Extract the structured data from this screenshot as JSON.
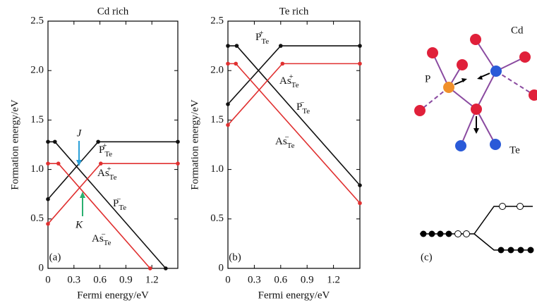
{
  "chart_data": [
    {
      "type": "line",
      "title": "Cd rich",
      "xlabel": "Fermi energy/eV",
      "ylabel": "Formation energy/eV",
      "xlim": [
        0,
        1.5
      ],
      "ylim": [
        0,
        2.5
      ],
      "xticks": [
        0,
        0.3,
        0.6,
        0.9,
        1.2
      ],
      "yticks": [
        0,
        0.5,
        {
          "value": 1,
          "label": "1.0"
        },
        1.5,
        {
          "value": 2,
          "label": "2.0"
        },
        2.5
      ],
      "series": [
        {
          "name": "P",
          "sub": "Te",
          "sup": "+",
          "color": "#111111",
          "x": [
            0,
            0.58,
            1.5
          ],
          "values": [
            0.7,
            1.28,
            1.28
          ]
        },
        {
          "name": "P",
          "sub": "Te",
          "sup": "−",
          "color": "#111111",
          "x": [
            0,
            0.08,
            1.36
          ],
          "values": [
            1.28,
            1.28,
            0
          ]
        },
        {
          "name": "As",
          "sub": "Te",
          "sup": "+",
          "color": "#e03030",
          "x": [
            0,
            0.61,
            1.5
          ],
          "values": [
            0.45,
            1.06,
            1.06
          ]
        },
        {
          "name": "As",
          "sub": "Te",
          "sup": "−",
          "color": "#e03030",
          "x": [
            0,
            0.12,
            1.18
          ],
          "values": [
            1.06,
            1.06,
            0
          ]
        }
      ],
      "annotations": [
        {
          "text": "J"
        },
        {
          "text": "K"
        },
        {
          "text": "(a)"
        }
      ]
    },
    {
      "type": "line",
      "title": "Te rich",
      "xlabel": "Fermi energy/eV",
      "ylabel": "Formation energy/eV",
      "xlim": [
        0,
        1.5
      ],
      "ylim": [
        0,
        2.5
      ],
      "xticks": [
        0,
        0.3,
        0.6,
        0.9,
        1.2
      ],
      "yticks": [
        0,
        0.5,
        {
          "value": 1,
          "label": "1.0"
        },
        1.5,
        {
          "value": 2,
          "label": "2.0"
        },
        2.5
      ],
      "series": [
        {
          "name": "P",
          "sub": "Te",
          "sup": "+",
          "color": "#111111",
          "x": [
            0,
            0.6,
            1.5
          ],
          "values": [
            1.66,
            2.25,
            2.25
          ]
        },
        {
          "name": "P",
          "sub": "Te",
          "sup": "−",
          "color": "#111111",
          "x": [
            0,
            0.1,
            1.5
          ],
          "values": [
            2.25,
            2.25,
            0.84
          ]
        },
        {
          "name": "As",
          "sub": "Te",
          "sup": "+",
          "color": "#e03030",
          "x": [
            0,
            0.62,
            1.5
          ],
          "values": [
            1.45,
            2.07,
            2.07
          ]
        },
        {
          "name": "As",
          "sub": "Te",
          "sup": "−",
          "color": "#e03030",
          "x": [
            0,
            0.09,
            1.5
          ],
          "values": [
            2.07,
            2.07,
            0.66
          ]
        }
      ],
      "annotations": [
        {
          "text": "(b)"
        }
      ]
    }
  ],
  "diagram": {
    "atom_labels": [
      "P",
      "Cd",
      "Te"
    ],
    "panel_label": "(c)"
  }
}
